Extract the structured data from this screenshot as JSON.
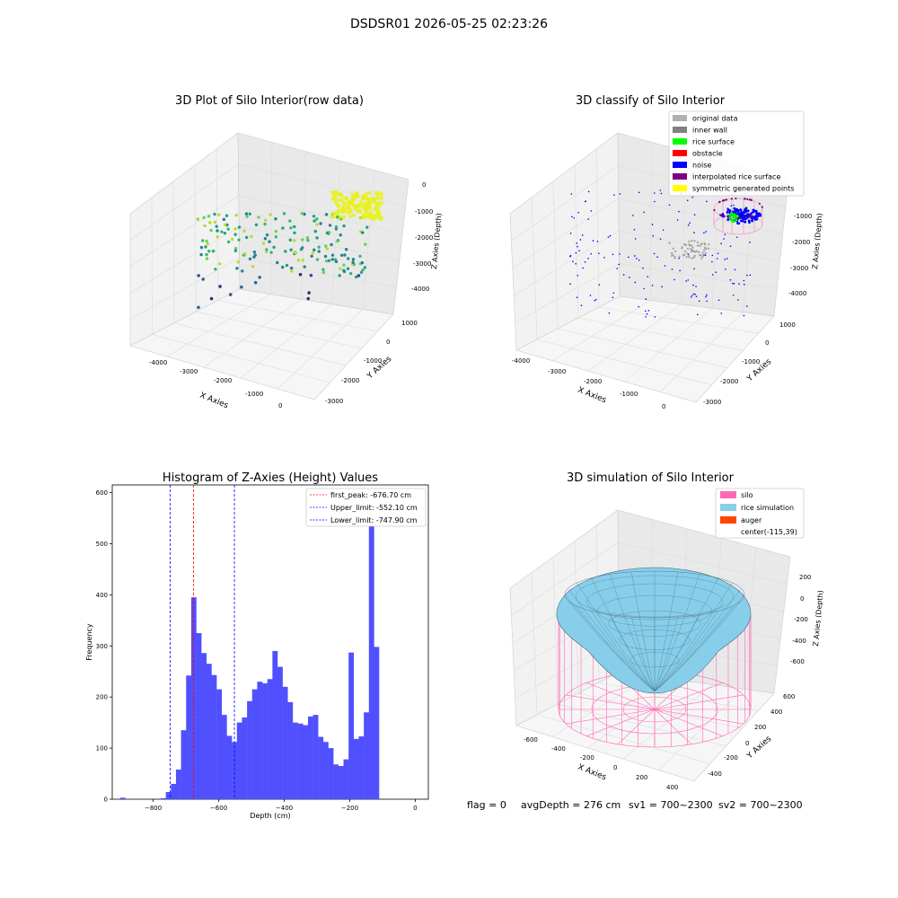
{
  "figure_title": "DSDSR01 2026-05-25 02:23:26",
  "footer": {
    "flag": "flag = 0",
    "avg": "avgDepth = 276 cm",
    "sv1": "sv1 = 700~2300",
    "sv2": "sv2 = 700~2300"
  },
  "colors": {
    "histogram_bar": "#5050ff",
    "first_peak_line": "#ff0000",
    "limit_line": "#0000ff",
    "silo": "#ff69b4",
    "rice": "#87ceeb",
    "auger": "#ff4500"
  },
  "chart_data": [
    {
      "type": "scatter",
      "projection": "3d",
      "title": "3D Plot of Silo Interior(row data)",
      "xlabel": "X Axies",
      "ylabel": "Y Axies",
      "zlabel": "Z Axies (Depth)",
      "xticks": [
        "-4000",
        "-3000",
        "-2000",
        "-1000",
        "0"
      ],
      "yticks": [
        "1000",
        "0",
        "-1000",
        "-2000",
        "-3000"
      ],
      "zticks": [
        "0",
        "-1000",
        "-2000",
        "-3000",
        "-4000"
      ],
      "colormap": "viridis",
      "grid": true
    },
    {
      "type": "scatter",
      "projection": "3d",
      "title": "3D classify of Silo Interior",
      "xlabel": "X Axies",
      "ylabel": "Y Axies",
      "zlabel": "Z Axies (Depth)",
      "xticks": [
        "-4000",
        "-3000",
        "-2000",
        "-1000",
        "0"
      ],
      "yticks": [
        "1000",
        "0",
        "-1000",
        "-2000",
        "-3000"
      ],
      "zticks": [
        "-1000",
        "-2000",
        "-3000",
        "-4000"
      ],
      "legend_position": "top-right",
      "legend": [
        {
          "label": "original data",
          "color": "#b0b0b0"
        },
        {
          "label": "inner wall",
          "color": "#808080"
        },
        {
          "label": "rice surface",
          "color": "#00ff00"
        },
        {
          "label": "obstacle",
          "color": "#ff0000"
        },
        {
          "label": "noise",
          "color": "#0000ff"
        },
        {
          "label": "interpolated rice surface",
          "color": "#800080"
        },
        {
          "label": "symmetric generated points",
          "color": "#ffff00"
        }
      ],
      "grid": true
    },
    {
      "type": "bar",
      "subtype": "histogram",
      "title": "Histogram of Z-Axies (Height) Values",
      "xlabel": "Depth (cm)",
      "ylabel": "Frequency",
      "xlim": [
        -925,
        40
      ],
      "ylim": [
        0,
        615
      ],
      "xticks": [
        -800,
        -600,
        -400,
        -200,
        0
      ],
      "xtick_labels": [
        "−800",
        "−600",
        "−400",
        "−200",
        "0"
      ],
      "yticks": [
        0,
        100,
        200,
        300,
        400,
        500,
        600
      ],
      "bin_width": 15.5,
      "bins_start": -901,
      "counts": [
        3,
        0,
        0,
        0,
        0,
        0,
        0,
        0,
        2,
        14,
        30,
        58,
        135,
        242,
        395,
        325,
        286,
        265,
        243,
        215,
        165,
        124,
        112,
        150,
        160,
        192,
        215,
        230,
        227,
        235,
        290,
        259,
        220,
        190,
        150,
        148,
        145,
        162,
        165,
        122,
        112,
        100,
        68,
        65,
        78,
        287,
        118,
        123,
        170,
        580,
        298
      ],
      "vlines": [
        {
          "label": "first_peak: -676.70 cm",
          "x": -676.7,
          "color": "#ff0000"
        },
        {
          "label": "Upper_limit: -552.10 cm",
          "x": -552.1,
          "color": "#0000ff"
        },
        {
          "label": "Lower_limit: -747.90 cm",
          "x": -747.9,
          "color": "#0000ff"
        }
      ],
      "legend_position": "top-right",
      "grid": false
    },
    {
      "type": "surface",
      "projection": "3d",
      "title": "3D simulation of Silo Interior",
      "xlabel": "X Axies",
      "ylabel": "Y Axies",
      "zlabel": "Z Axies (Depth)",
      "xticks": [
        "-600",
        "-400",
        "-200",
        "0",
        "200",
        "400"
      ],
      "yticks": [
        "600",
        "400",
        "200",
        "0",
        "-200",
        "-400"
      ],
      "zticks": [
        "200",
        "0",
        "-200",
        "-400",
        "-600"
      ],
      "legend_position": "top-right",
      "legend": [
        {
          "label": "silo",
          "color": "#ff69b4"
        },
        {
          "label": "rice simulation",
          "color": "#87ceeb"
        },
        {
          "label": "auger",
          "color": "#ff4500"
        },
        {
          "label": "center(-115,39)",
          "color": ""
        }
      ],
      "grid": true
    }
  ]
}
